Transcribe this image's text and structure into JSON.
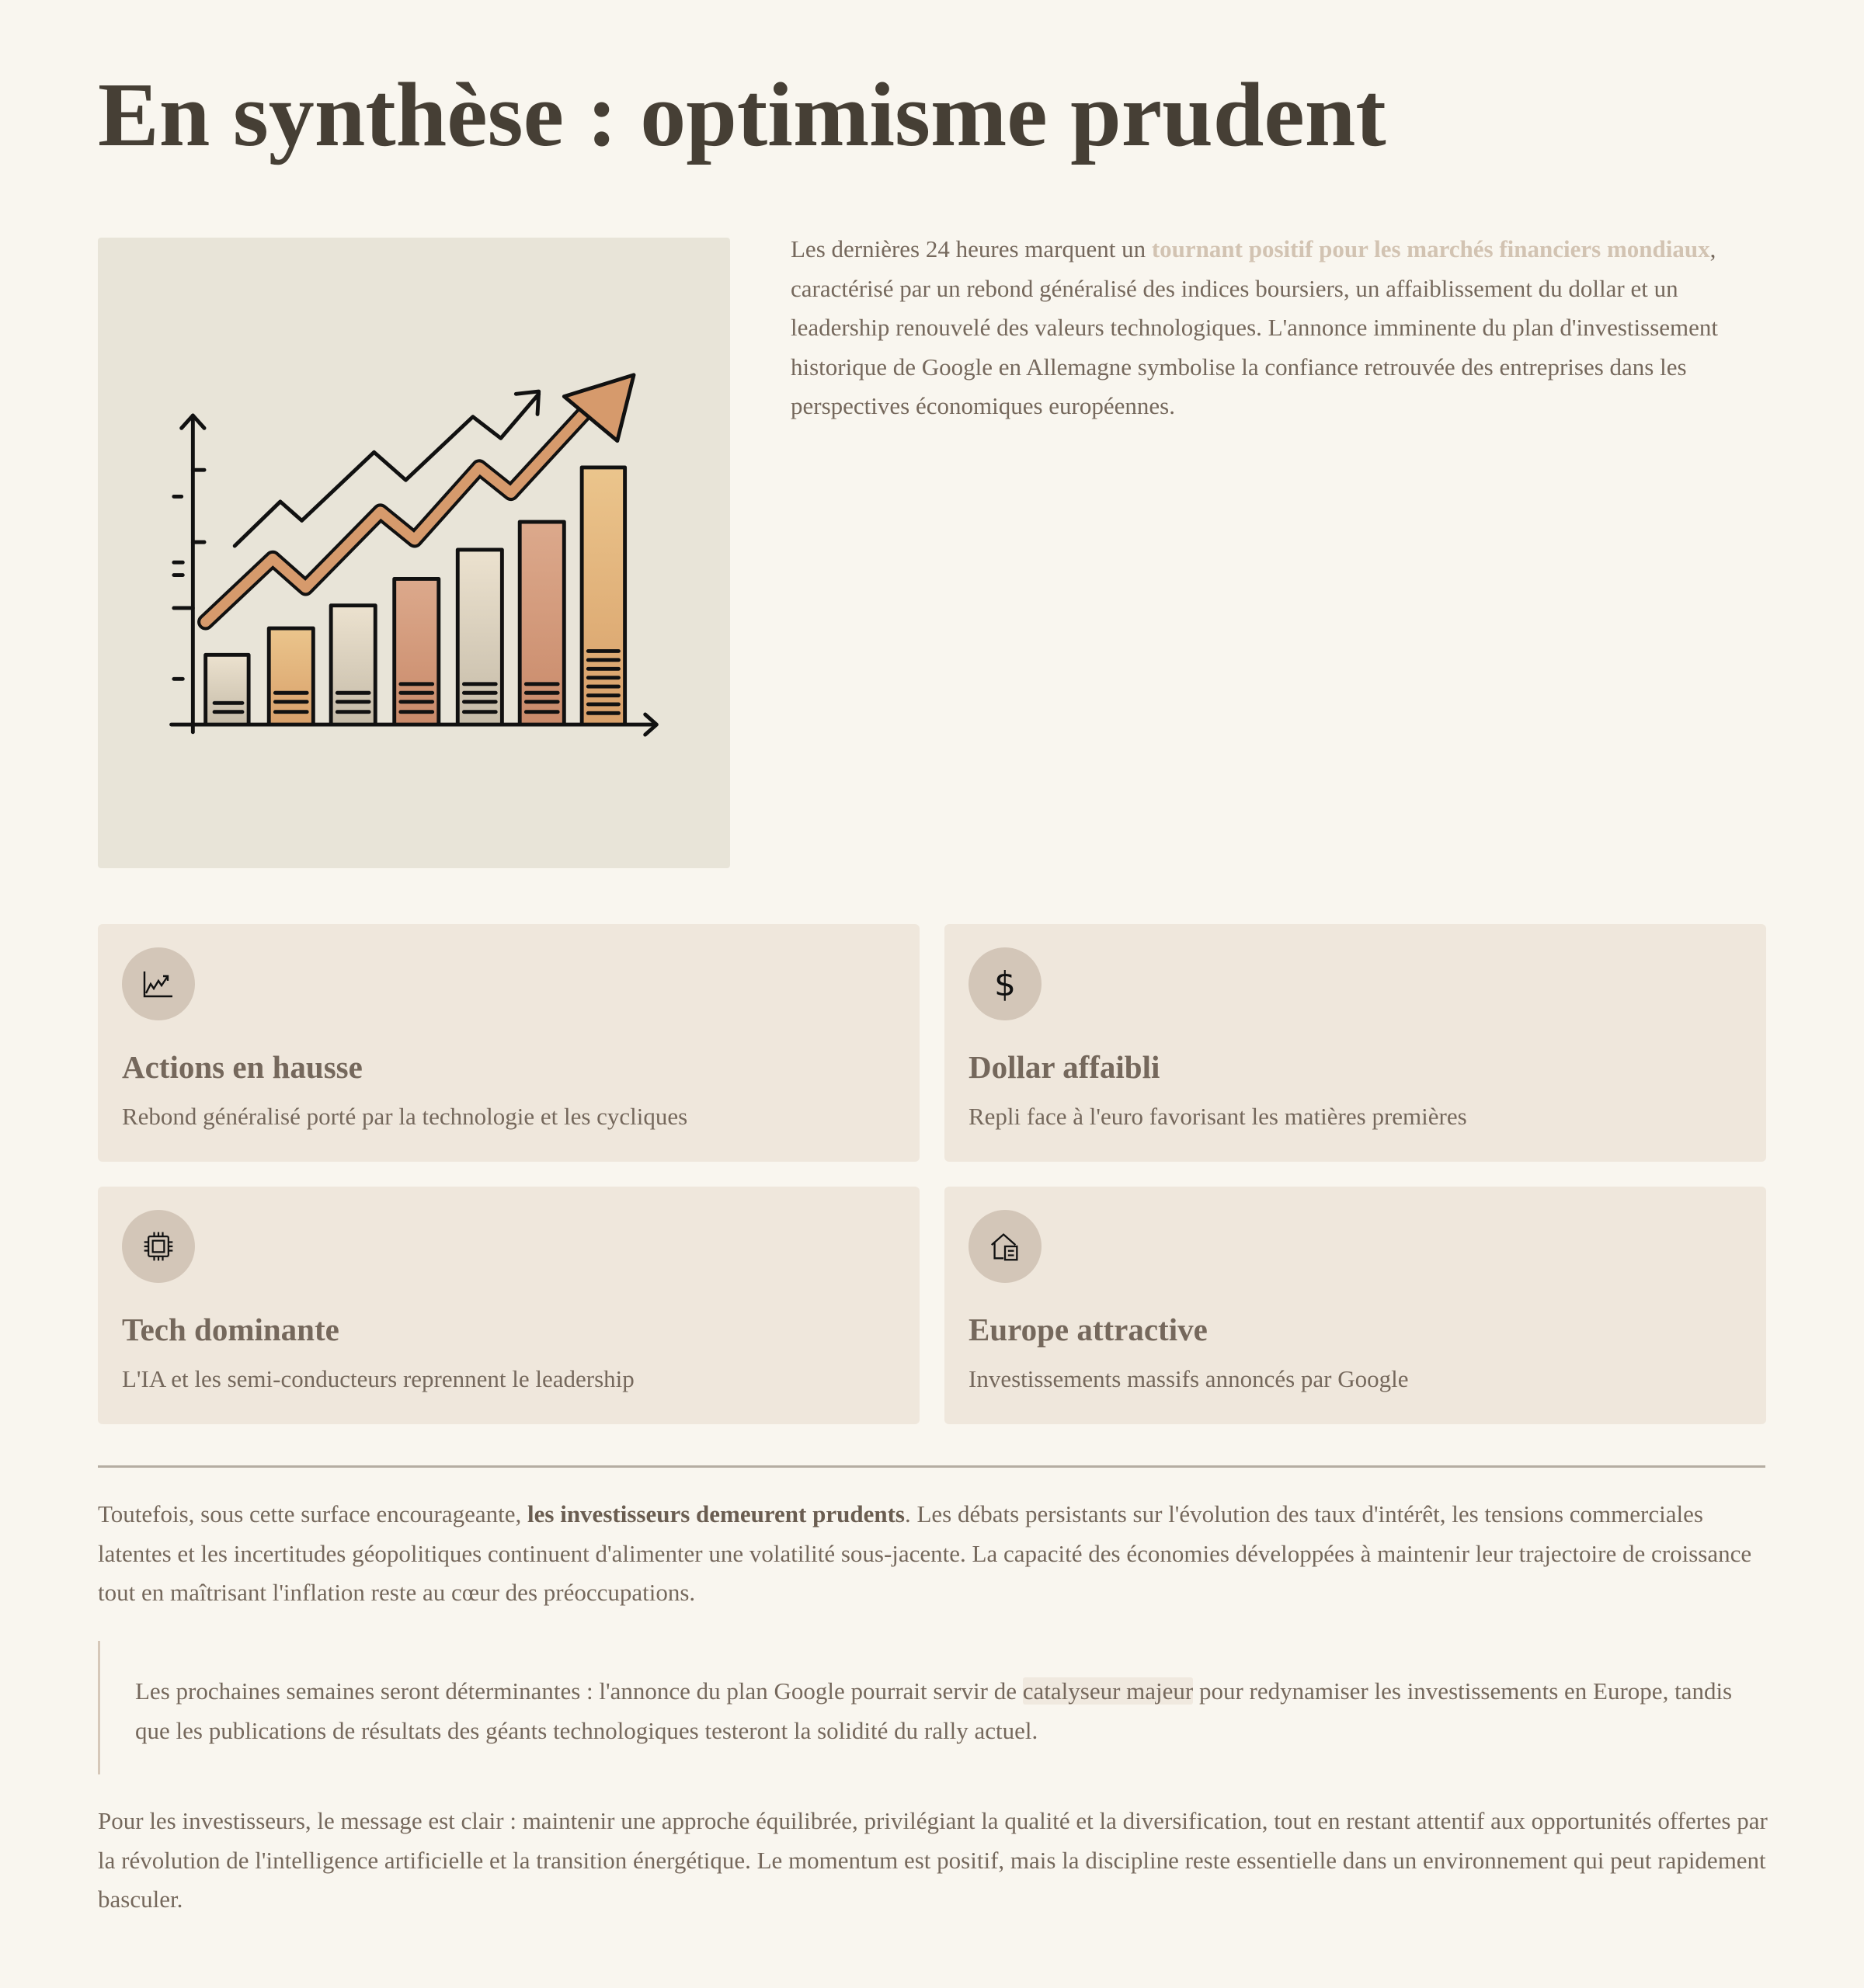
{
  "title": "En synthèse : optimisme prudent",
  "intro": {
    "before": "Les dernières 24 heures marquent un ",
    "highlight": "tournant positif pour les marchés financiers mondiaux",
    "after": ", caractérisé par un rebond généralisé des indices boursiers, un affaiblissement du dollar et un leadership renouvelé des valeurs technologiques. L'annonce imminente du plan d'investissement historique de Google en Allemagne symbolise la confiance retrouvée des entreprises dans les perspectives économiques européennes."
  },
  "cards": [
    {
      "icon": "chart-line-icon",
      "title": "Actions en hausse",
      "desc": "Rebond généralisé porté par la technologie et les cycliques"
    },
    {
      "icon": "dollar-icon",
      "title": "Dollar affaibli",
      "desc": "Repli face à l'euro favorisant les matières premières"
    },
    {
      "icon": "chip-icon",
      "title": "Tech dominante",
      "desc": "L'IA et les semi-conducteurs reprennent le leadership"
    },
    {
      "icon": "house-document-icon",
      "title": "Europe attractive",
      "desc": "Investissements massifs annoncés par Google"
    }
  ],
  "para1": {
    "before": "Toutefois, sous cette surface encourageante, ",
    "bold": "les investisseurs demeurent prudents",
    "after": ". Les débats persistants sur l'évolution des taux d'intérêt, les tensions commerciales latentes et les incertitudes géopolitiques continuent d'alimenter une volatilité sous-jacente. La capacité des économies développées à maintenir leur trajectoire de croissance tout en maîtrisant l'inflation reste au cœur des préoccupations."
  },
  "quote": {
    "before": "Les prochaines semaines seront déterminantes : l'annonce du plan Google pourrait servir de ",
    "highlight": "catalyseur majeur",
    "after": " pour redynamiser les investissements en Europe, tandis que les publications de résultats des géants technologiques testeront la solidité du rally actuel."
  },
  "para2": "Pour les investisseurs, le message est clair : maintenir une approche équilibrée, privilégiant la qualité et la diversification, tout en restant attentif aux opportunités offertes par la révolution de l'intelligence artificielle et la transition énergétique. Le momentum est positif, mais la discipline reste essentielle dans un environnement qui peut rapidement basculer."
}
